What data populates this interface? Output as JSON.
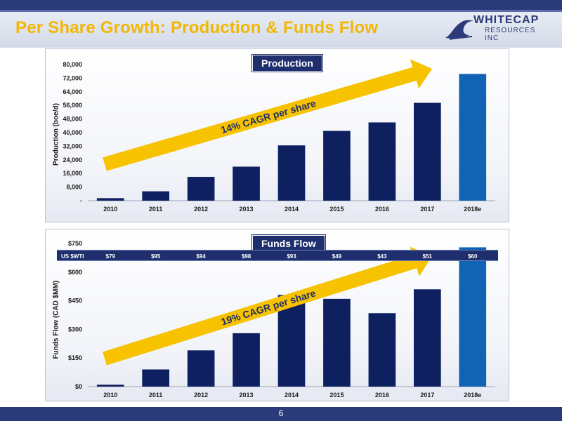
{
  "header": {
    "title": "Per Share Growth:  Production & Funds Flow",
    "logo_name": "WHITECAP",
    "logo_sub": "RESOURCES INC"
  },
  "footer": {
    "page_number": "6"
  },
  "colors": {
    "bar": "#0f2060",
    "bar_forecast": "#1163b3",
    "arrow": "#f7c200",
    "title": "#f2b705"
  },
  "chart_data": [
    {
      "type": "bar",
      "title": "Production",
      "ylabel": "Production (boe/d)",
      "xlabel": "",
      "categories": [
        "2010",
        "2011",
        "2012",
        "2013",
        "2014",
        "2015",
        "2016",
        "2017",
        "2018e"
      ],
      "values": [
        1500,
        5500,
        14000,
        20000,
        32500,
        41000,
        46000,
        57500,
        74500
      ],
      "ylim": [
        0,
        80000
      ],
      "yticks": [
        0,
        8000,
        16000,
        24000,
        32000,
        40000,
        48000,
        56000,
        64000,
        72000,
        80000
      ],
      "ytick_labels": [
        "-",
        "8,000",
        "16,000",
        "24,000",
        "32,000",
        "40,000",
        "48,000",
        "56,000",
        "64,000",
        "72,000",
        "80,000"
      ],
      "annotation": "14% CAGR per share",
      "grid": false
    },
    {
      "type": "bar",
      "title": "Funds Flow",
      "ylabel": "Funds Flow (CAD $MM)",
      "xlabel": "",
      "categories": [
        "2010",
        "2011",
        "2012",
        "2013",
        "2014",
        "2015",
        "2016",
        "2017",
        "2018e"
      ],
      "values": [
        10,
        90,
        190,
        280,
        480,
        460,
        385,
        510,
        730
      ],
      "ylim": [
        0,
        750
      ],
      "yticks": [
        0,
        150,
        300,
        450,
        600,
        750
      ],
      "ytick_labels": [
        "$0",
        "$150",
        "$300",
        "$450",
        "$600",
        "$750"
      ],
      "annotation": "19% CAGR per share",
      "wti_label": "US $WTI",
      "wti_values": [
        "$79",
        "$95",
        "$94",
        "$98",
        "$93",
        "$49",
        "$43",
        "$51",
        "$60"
      ],
      "grid": false
    }
  ]
}
